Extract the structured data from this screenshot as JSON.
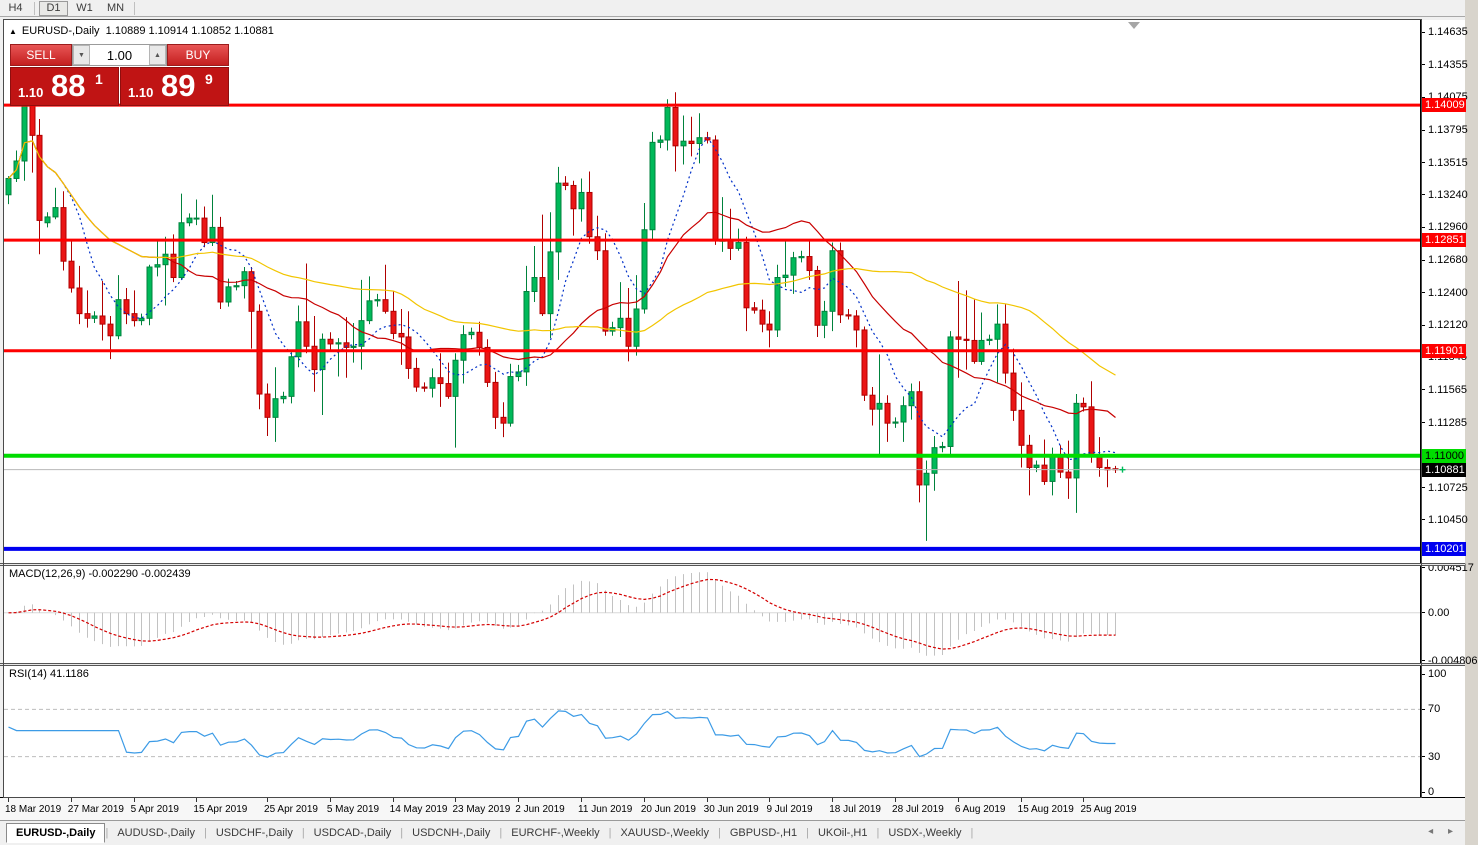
{
  "toolbar": {
    "buttons": [
      "H4",
      "D1",
      "W1",
      "MN"
    ],
    "active": "D1"
  },
  "chart_header": {
    "collapse_icon": "▲",
    "symbol": "EURUSD-,Daily",
    "ohlc": "1.10889 1.10914 1.10852 1.10881"
  },
  "trade_panel": {
    "sell_label": "SELL",
    "buy_label": "BUY",
    "volume": "1.00",
    "down_arrow": "▼",
    "up_arrow": "▲",
    "sell_small": "1.10",
    "sell_big": "88",
    "sell_sup": "1",
    "buy_small": "1.10",
    "buy_big": "89",
    "buy_sup": "9"
  },
  "price_axis": {
    "ticks": [
      "1.14635",
      "1.14355",
      "1.14075",
      "1.13795",
      "1.13515",
      "1.13240",
      "1.12960",
      "1.12680",
      "1.12400",
      "1.12120",
      "1.11845",
      "1.11565",
      "1.11285",
      "1.10725",
      "1.10450"
    ]
  },
  "chart_data": {
    "type": "candlestick",
    "symbol": "EURUSD-,Daily",
    "last_ohlc": {
      "open": 1.10889,
      "high": 1.10914,
      "low": 1.10852,
      "close": 1.10881
    },
    "price_range": [
      1.1008,
      1.1474
    ],
    "colors": {
      "up": "#00b95a",
      "up_border": "#00823c",
      "down": "#ea1515",
      "down_border": "#b00000",
      "macd_hist": "#c2c2c2",
      "macd_signal": "#d40000",
      "rsi_line": "#3c9be6",
      "level_dash": "#bdbdbd"
    },
    "moving_averages": [
      {
        "period": 8,
        "color": "#0030c8",
        "style": "dotted"
      },
      {
        "period": 21,
        "color": "#c80000",
        "style": "solid"
      },
      {
        "period": 50,
        "color": "#f2c500",
        "style": "solid"
      }
    ],
    "hlines": [
      {
        "price": 1.14009,
        "label": "1.14009",
        "color": "#fe0000",
        "width": 3,
        "text_color": "#ffffff"
      },
      {
        "price": 1.12851,
        "label": "1.12851",
        "color": "#fe0000",
        "width": 3,
        "text_color": "#ffffff"
      },
      {
        "price": 1.11901,
        "label": "1.11901",
        "color": "#fe0000",
        "width": 3,
        "text_color": "#ffffff"
      },
      {
        "price": 1.11,
        "label": "1.11000",
        "color": "#00dc00",
        "width": 4,
        "text_color": "#000000"
      },
      {
        "price": 1.10201,
        "label": "1.10201",
        "color": "#0000f0",
        "width": 4,
        "text_color": "#ffffff"
      }
    ],
    "current_price_line": {
      "price": 1.10881,
      "label": "1.10881",
      "line_color": "#b8b8b8",
      "chip_bg": "#000000",
      "text_color": "#ffffff"
    },
    "macd": {
      "label": "MACD(12,26,9) -0.002290 -0.002439",
      "fast": 12,
      "slow": 26,
      "signal": 9,
      "values_text": [
        "-0.002290",
        "-0.002439"
      ],
      "axis": [
        "0.004517",
        "0.00",
        "-0.004806"
      ],
      "range": [
        -0.00502,
        0.00468
      ]
    },
    "rsi": {
      "label": "RSI(14) 41.1186",
      "period": 14,
      "value_text": "41.1186",
      "axis": [
        "100",
        "70",
        "30",
        "0"
      ],
      "levels": [
        70,
        30
      ]
    },
    "date_ticks": [
      {
        "label": "18 Mar 2019",
        "i": 0
      },
      {
        "label": "27 Mar 2019",
        "i": 8
      },
      {
        "label": "5 Apr 2019",
        "i": 16
      },
      {
        "label": "15 Apr 2019",
        "i": 24
      },
      {
        "label": "25 Apr 2019",
        "i": 33
      },
      {
        "label": "5 May 2019",
        "i": 41
      },
      {
        "label": "14 May 2019",
        "i": 49
      },
      {
        "label": "23 May 2019",
        "i": 57
      },
      {
        "label": "2 Jun 2019",
        "i": 65
      },
      {
        "label": "11 Jun 2019",
        "i": 73
      },
      {
        "label": "20 Jun 2019",
        "i": 81
      },
      {
        "label": "30 Jun 2019",
        "i": 89
      },
      {
        "label": "9 Jul 2019",
        "i": 97
      },
      {
        "label": "18 Jul 2019",
        "i": 105
      },
      {
        "label": "28 Jul 2019",
        "i": 113
      },
      {
        "label": "6 Aug 2019",
        "i": 121
      },
      {
        "label": "15 Aug 2019",
        "i": 129
      },
      {
        "label": "25 Aug 2019",
        "i": 137
      }
    ],
    "candles": [
      [
        1.1324,
        1.134,
        1.1316,
        1.1338
      ],
      [
        1.1338,
        1.1362,
        1.1335,
        1.1353
      ],
      [
        1.1353,
        1.143,
        1.1336,
        1.1415
      ],
      [
        1.1415,
        1.1418,
        1.1343,
        1.1375
      ],
      [
        1.1375,
        1.1389,
        1.1273,
        1.1302
      ],
      [
        1.13,
        1.1309,
        1.1296,
        1.1305
      ],
      [
        1.1305,
        1.133,
        1.1303,
        1.1313
      ],
      [
        1.1313,
        1.1327,
        1.1259,
        1.1267
      ],
      [
        1.1267,
        1.1286,
        1.124,
        1.1244
      ],
      [
        1.1244,
        1.1263,
        1.1213,
        1.1222
      ],
      [
        1.1222,
        1.1242,
        1.121,
        1.1218
      ],
      [
        1.1218,
        1.1224,
        1.1214,
        1.122
      ],
      [
        1.122,
        1.125,
        1.1199,
        1.1213
      ],
      [
        1.1213,
        1.122,
        1.1183,
        1.1203
      ],
      [
        1.1203,
        1.1255,
        1.12,
        1.1234
      ],
      [
        1.1234,
        1.1244,
        1.1213,
        1.1222
      ],
      [
        1.1222,
        1.1242,
        1.1211,
        1.1216
      ],
      [
        1.1216,
        1.1222,
        1.1212,
        1.1218
      ],
      [
        1.1218,
        1.1264,
        1.1212,
        1.1262
      ],
      [
        1.1262,
        1.1284,
        1.1254,
        1.1264
      ],
      [
        1.1264,
        1.1288,
        1.1229,
        1.1273
      ],
      [
        1.1273,
        1.129,
        1.1249,
        1.1253
      ],
      [
        1.1253,
        1.1325,
        1.1251,
        1.13
      ],
      [
        1.13,
        1.1308,
        1.1297,
        1.1304
      ],
      [
        1.1304,
        1.132,
        1.1298,
        1.1304
      ],
      [
        1.1304,
        1.1314,
        1.1279,
        1.1283
      ],
      [
        1.1283,
        1.1324,
        1.128,
        1.1296
      ],
      [
        1.1296,
        1.1305,
        1.1226,
        1.1232
      ],
      [
        1.1232,
        1.1252,
        1.1228,
        1.1245
      ],
      [
        1.1245,
        1.125,
        1.1242,
        1.1246
      ],
      [
        1.1246,
        1.1262,
        1.1235,
        1.1258
      ],
      [
        1.1258,
        1.1262,
        1.1192,
        1.1224
      ],
      [
        1.1224,
        1.123,
        1.114,
        1.1153
      ],
      [
        1.1153,
        1.1162,
        1.1117,
        1.1133
      ],
      [
        1.1133,
        1.1176,
        1.1112,
        1.1149
      ],
      [
        1.1149,
        1.1155,
        1.1145,
        1.1151
      ],
      [
        1.1151,
        1.1189,
        1.1145,
        1.1185
      ],
      [
        1.1185,
        1.1229,
        1.1176,
        1.1215
      ],
      [
        1.1215,
        1.1265,
        1.1188,
        1.1194
      ],
      [
        1.1194,
        1.122,
        1.1155,
        1.1174
      ],
      [
        1.1174,
        1.1205,
        1.1135,
        1.12
      ],
      [
        1.12,
        1.1206,
        1.119,
        1.1196
      ],
      [
        1.1196,
        1.1201,
        1.1168,
        1.1197
      ],
      [
        1.1197,
        1.1219,
        1.1167,
        1.1193
      ],
      [
        1.1193,
        1.1214,
        1.118,
        1.1194
      ],
      [
        1.1194,
        1.1251,
        1.1174,
        1.1216
      ],
      [
        1.1216,
        1.1254,
        1.1213,
        1.1233
      ],
      [
        1.1233,
        1.1239,
        1.1228,
        1.1234
      ],
      [
        1.1234,
        1.1264,
        1.1222,
        1.1224
      ],
      [
        1.1224,
        1.1241,
        1.12,
        1.1205
      ],
      [
        1.1205,
        1.1226,
        1.1178,
        1.1202
      ],
      [
        1.1202,
        1.1224,
        1.1166,
        1.1175
      ],
      [
        1.1175,
        1.1184,
        1.1155,
        1.1159
      ],
      [
        1.1159,
        1.1163,
        1.1155,
        1.1158
      ],
      [
        1.1158,
        1.1175,
        1.115,
        1.1167
      ],
      [
        1.1167,
        1.1188,
        1.1142,
        1.1162
      ],
      [
        1.1162,
        1.118,
        1.1149,
        1.1151
      ],
      [
        1.1151,
        1.1188,
        1.1107,
        1.1182
      ],
      [
        1.1182,
        1.1212,
        1.1162,
        1.1204
      ],
      [
        1.1204,
        1.121,
        1.12,
        1.1206
      ],
      [
        1.1206,
        1.1215,
        1.1186,
        1.1193
      ],
      [
        1.1193,
        1.12,
        1.1159,
        1.1163
      ],
      [
        1.1163,
        1.1172,
        1.1123,
        1.1133
      ],
      [
        1.1133,
        1.1146,
        1.1116,
        1.1128
      ],
      [
        1.1128,
        1.1179,
        1.1125,
        1.1168
      ],
      [
        1.1168,
        1.1178,
        1.1164,
        1.1172
      ],
      [
        1.1172,
        1.1263,
        1.116,
        1.1241
      ],
      [
        1.1241,
        1.128,
        1.1232,
        1.1253
      ],
      [
        1.1253,
        1.1307,
        1.122,
        1.1222
      ],
      [
        1.1222,
        1.1309,
        1.1201,
        1.1275
      ],
      [
        1.1275,
        1.1348,
        1.1251,
        1.1334
      ],
      [
        1.1334,
        1.134,
        1.1328,
        1.1332
      ],
      [
        1.1332,
        1.1336,
        1.1289,
        1.1312
      ],
      [
        1.1312,
        1.1338,
        1.1301,
        1.1326
      ],
      [
        1.1326,
        1.1344,
        1.1282,
        1.1288
      ],
      [
        1.1288,
        1.1306,
        1.1268,
        1.1276
      ],
      [
        1.1276,
        1.1291,
        1.1203,
        1.1207
      ],
      [
        1.1207,
        1.1215,
        1.1203,
        1.121
      ],
      [
        1.121,
        1.1249,
        1.1202,
        1.1218
      ],
      [
        1.1218,
        1.1244,
        1.1181,
        1.1194
      ],
      [
        1.1194,
        1.1255,
        1.1186,
        1.1226
      ],
      [
        1.1226,
        1.1317,
        1.1222,
        1.1294
      ],
      [
        1.1294,
        1.1378,
        1.1285,
        1.1369
      ],
      [
        1.1369,
        1.1375,
        1.1364,
        1.1371
      ],
      [
        1.1371,
        1.1406,
        1.1362,
        1.1399
      ],
      [
        1.1399,
        1.1412,
        1.1344,
        1.1366
      ],
      [
        1.1366,
        1.1392,
        1.135,
        1.137
      ],
      [
        1.137,
        1.1391,
        1.1357,
        1.1368
      ],
      [
        1.1368,
        1.1394,
        1.1351,
        1.1373
      ],
      [
        1.1373,
        1.1378,
        1.1368,
        1.1371
      ],
      [
        1.1371,
        1.1375,
        1.1281,
        1.1285
      ],
      [
        1.1285,
        1.1322,
        1.1275,
        1.1285
      ],
      [
        1.1285,
        1.1312,
        1.1268,
        1.1278
      ],
      [
        1.1278,
        1.1295,
        1.1276,
        1.1283
      ],
      [
        1.1283,
        1.1288,
        1.1207,
        1.1227
      ],
      [
        1.1227,
        1.1232,
        1.1222,
        1.1225
      ],
      [
        1.1225,
        1.1234,
        1.1206,
        1.1213
      ],
      [
        1.1213,
        1.1224,
        1.1193,
        1.1208
      ],
      [
        1.1208,
        1.1264,
        1.1202,
        1.1253
      ],
      [
        1.1253,
        1.1286,
        1.1245,
        1.1255
      ],
      [
        1.1255,
        1.1275,
        1.1239,
        1.127
      ],
      [
        1.127,
        1.1276,
        1.1266,
        1.1271
      ],
      [
        1.1271,
        1.1285,
        1.1251,
        1.1259
      ],
      [
        1.1259,
        1.1263,
        1.1202,
        1.1212
      ],
      [
        1.1212,
        1.1233,
        1.1201,
        1.1224
      ],
      [
        1.1224,
        1.1283,
        1.1207,
        1.1276
      ],
      [
        1.1276,
        1.1283,
        1.1214,
        1.1221
      ],
      [
        1.1221,
        1.1226,
        1.1217,
        1.122
      ],
      [
        1.122,
        1.1225,
        1.1193,
        1.1208
      ],
      [
        1.1208,
        1.1211,
        1.1147,
        1.1152
      ],
      [
        1.1152,
        1.1159,
        1.1126,
        1.114
      ],
      [
        1.114,
        1.1187,
        1.1101,
        1.1145
      ],
      [
        1.1145,
        1.1152,
        1.1112,
        1.1128
      ],
      [
        1.1128,
        1.1133,
        1.1124,
        1.1129
      ],
      [
        1.1129,
        1.1151,
        1.1112,
        1.1143
      ],
      [
        1.1143,
        1.1162,
        1.1131,
        1.1155
      ],
      [
        1.1155,
        1.1164,
        1.106,
        1.1075
      ],
      [
        1.1075,
        1.1096,
        1.1027,
        1.1085
      ],
      [
        1.1085,
        1.1117,
        1.107,
        1.1107
      ],
      [
        1.1107,
        1.1112,
        1.1103,
        1.1108
      ],
      [
        1.1108,
        1.1207,
        1.1101,
        1.1202
      ],
      [
        1.1202,
        1.125,
        1.1167,
        1.12
      ],
      [
        1.12,
        1.1242,
        1.1174,
        1.1199
      ],
      [
        1.1199,
        1.1234,
        1.1179,
        1.1181
      ],
      [
        1.1181,
        1.1223,
        1.1178,
        1.1199
      ],
      [
        1.1199,
        1.1204,
        1.1195,
        1.12
      ],
      [
        1.12,
        1.123,
        1.1163,
        1.1213
      ],
      [
        1.1213,
        1.123,
        1.1162,
        1.1171
      ],
      [
        1.1171,
        1.1192,
        1.113,
        1.1139
      ],
      [
        1.1139,
        1.1163,
        1.109,
        1.1109
      ],
      [
        1.1109,
        1.1118,
        1.1066,
        1.109
      ],
      [
        1.109,
        1.1096,
        1.1086,
        1.1092
      ],
      [
        1.1092,
        1.1114,
        1.1075,
        1.1078
      ],
      [
        1.1078,
        1.1107,
        1.1066,
        1.1099
      ],
      [
        1.1099,
        1.1109,
        1.1081,
        1.1086
      ],
      [
        1.1086,
        1.1113,
        1.1063,
        1.1081
      ],
      [
        1.1081,
        1.1153,
        1.1051,
        1.1145
      ],
      [
        1.1145,
        1.115,
        1.1138,
        1.1142
      ],
      [
        1.1142,
        1.1164,
        1.1094,
        1.1101
      ],
      [
        1.1101,
        1.1116,
        1.1082,
        1.109
      ],
      [
        1.109,
        1.1097,
        1.1073,
        1.1088
      ],
      [
        1.10889,
        1.10914,
        1.10852,
        1.10881
      ]
    ]
  },
  "tabs": {
    "items": [
      "EURUSD-,Daily",
      "AUDUSD-,Daily",
      "USDCHF-,Daily",
      "USDCAD-,Daily",
      "USDCNH-,Daily",
      "EURCHF-,Weekly",
      "XAUUSD-,Weekly",
      "GBPUSD-,H1",
      "UKOil-,H1",
      "USDX-,Weekly"
    ],
    "active": "EURUSD-,Daily",
    "scroll_left": "◂",
    "scroll_right": "▸"
  }
}
